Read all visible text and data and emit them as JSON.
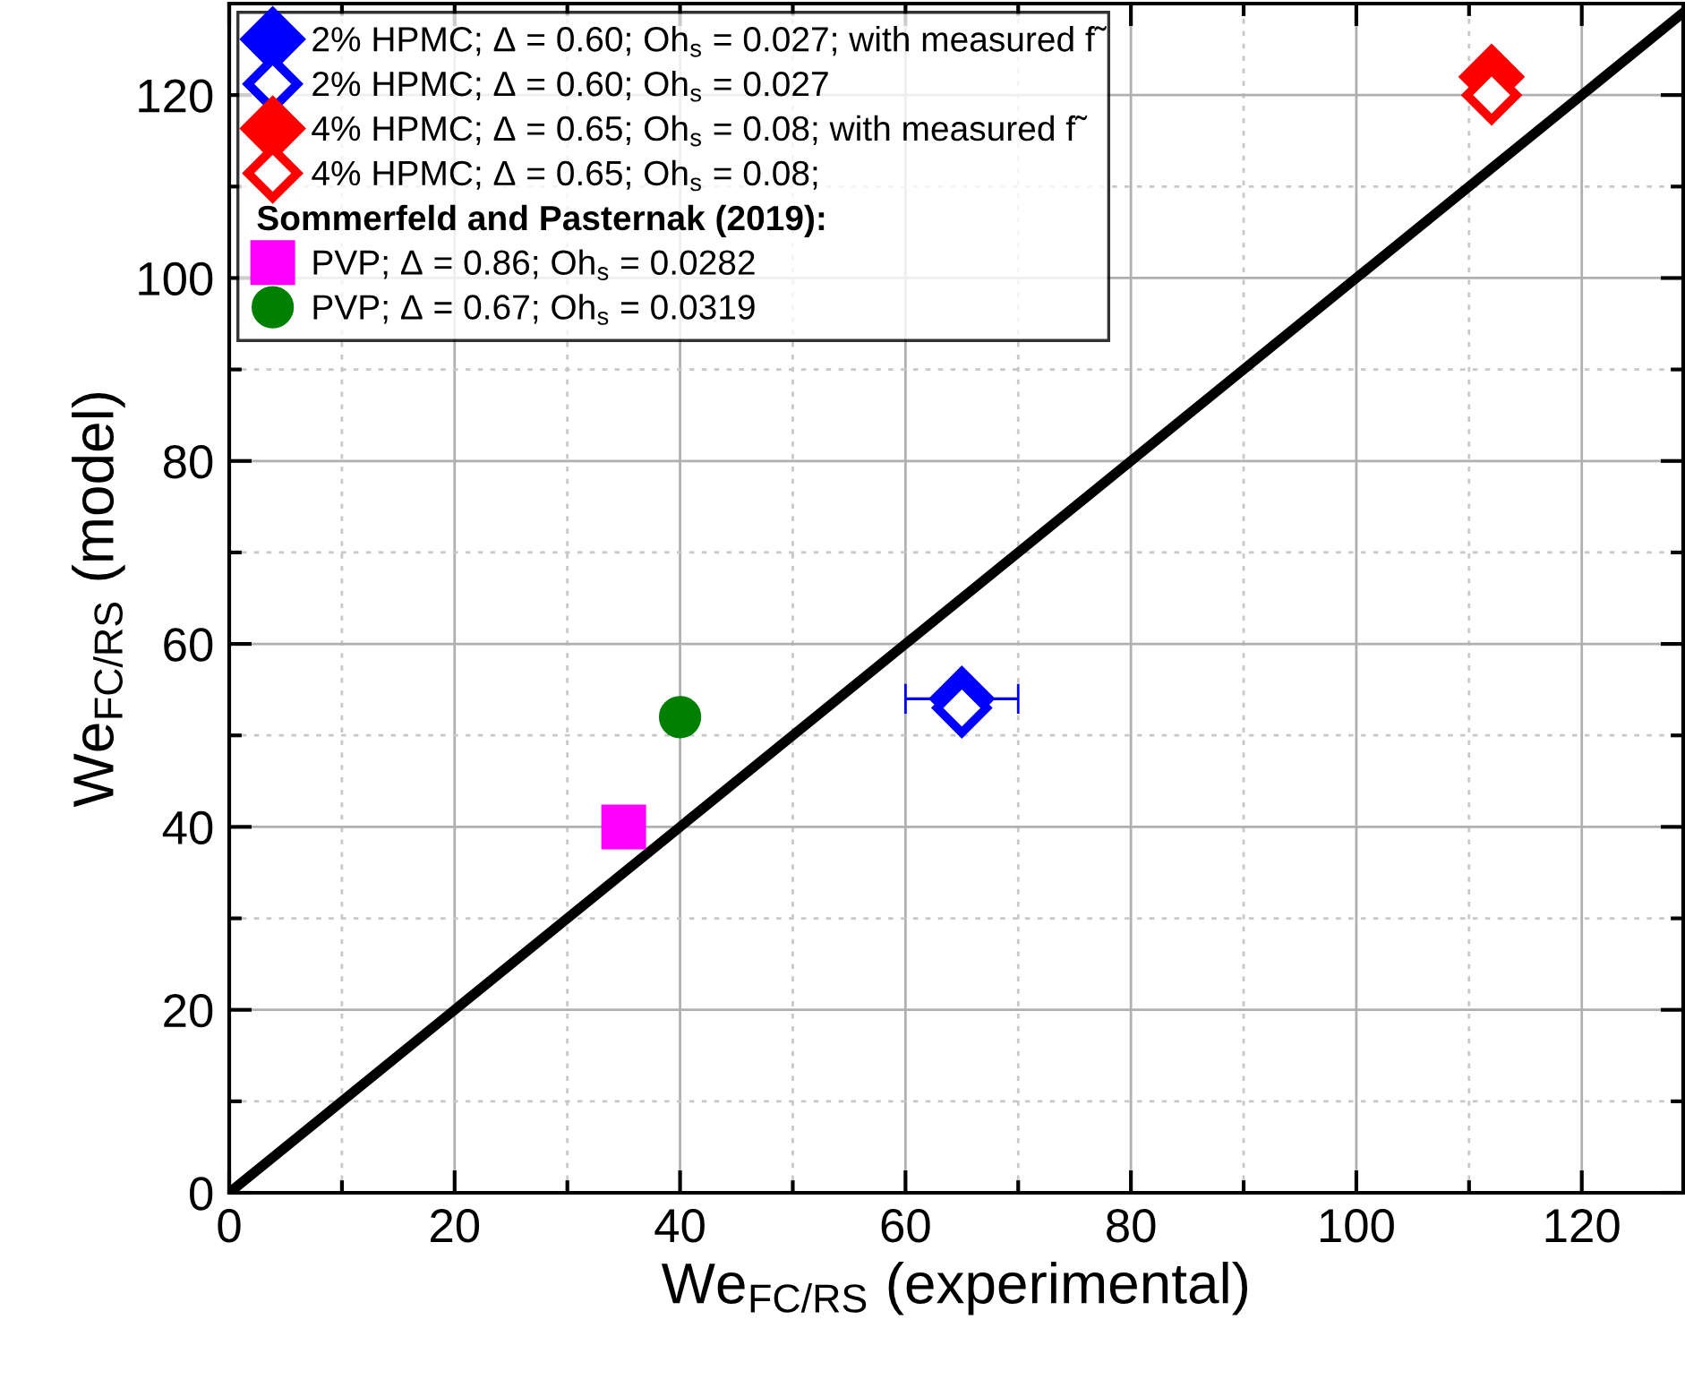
{
  "chart_data": {
    "type": "scatter",
    "xlabel": "We$_{FC/RS}$ (experimental)",
    "ylabel": "We$_{FC/RS}$ (model)",
    "xlim": [
      0,
      129
    ],
    "ylim": [
      0,
      130
    ],
    "xticks": [
      0,
      {
        "value": 10,
        "label": null
      },
      20,
      {
        "value": 30,
        "label": null
      },
      40,
      {
        "value": 50,
        "label": null
      },
      60,
      {
        "value": 70,
        "label": null
      },
      80,
      {
        "value": 90,
        "label": null
      },
      100,
      {
        "value": 110,
        "label": null
      },
      120
    ],
    "yticks": [
      0,
      {
        "value": 10,
        "label": null
      },
      20,
      {
        "value": 30,
        "label": null
      },
      40,
      {
        "value": 50,
        "label": null
      },
      60,
      {
        "value": 70,
        "label": null
      },
      80,
      {
        "value": 90,
        "label": null
      },
      100,
      {
        "value": 110,
        "label": null
      },
      120
    ],
    "grid": true,
    "legend": "top left",
    "annotations": [
      "Sommerfeld and Pasternak (2019):"
    ],
    "series": [
      {
        "name": "2% HPMC; Δ = 0.60; Oh$_{s}$ = 0.027; with measured f̃",
        "color": "#0000ff",
        "marker": "diamond",
        "x": [
          65
        ],
        "values": [
          54
        ],
        "xerrors": [
          5
        ]
      },
      {
        "name": "2% HPMC; Δ = 0.60; Oh$_{s}$ = 0.027",
        "color": "#0000ff",
        "marker": "diamond",
        "x": [
          65
        ],
        "values": [
          53
        ]
      },
      {
        "name": "4% HPMC; Δ = 0.65; Oh$_{s}$ = 0.08; with measured f̃",
        "color": "#ff0000",
        "marker": "diamond",
        "x": [
          112
        ],
        "values": [
          122
        ]
      },
      {
        "name": "4% HPMC; Δ = 0.65; Oh$_{s}$ = 0.08;",
        "color": "#ff0000",
        "marker": "diamond",
        "x": [
          112
        ],
        "values": [
          120
        ]
      },
      {
        "name": "PVP; Δ = 0.86; Oh$_{s}$ = 0.0282",
        "color": "#ff00ff",
        "marker": "square",
        "x": [
          35
        ],
        "values": [
          40
        ]
      },
      {
        "name": "PVP; Δ = 0.67; Oh$_{s}$ = 0.0319",
        "color": "#008000",
        "marker": "circle",
        "x": [
          40
        ],
        "values": [
          52
        ]
      },
      {
        "type": "line",
        "color": "#000000",
        "x": [
          0,
          129
        ],
        "values": [
          0,
          129
        ]
      }
    ]
  }
}
